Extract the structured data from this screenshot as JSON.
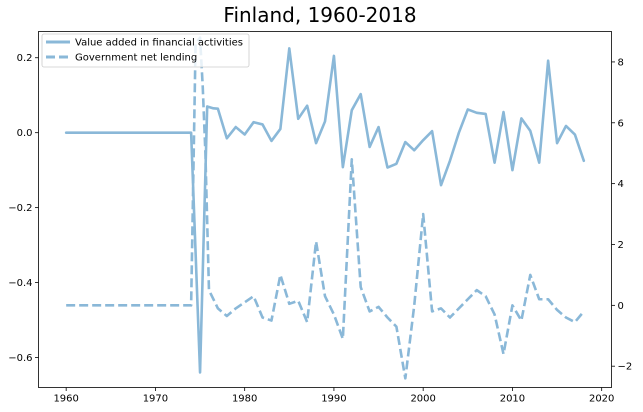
{
  "chart_data": {
    "type": "line",
    "title": "Finland, 1960-2018",
    "xlabel": "",
    "ylabel": "",
    "xlim": [
      1956.9,
      2021.1
    ],
    "ylim_left": [
      -0.68,
      0.27
    ],
    "ylim_right": [
      -2.7,
      9.0
    ],
    "x_ticks": [
      1960,
      1970,
      1980,
      1990,
      2000,
      2010,
      2020
    ],
    "y_ticks_left": [
      0.2,
      0.0,
      -0.2,
      -0.4,
      -0.6
    ],
    "y_ticks_left_labels": [
      "0.2",
      "0.0",
      "−0.2",
      "−0.4",
      "−0.6"
    ],
    "y_ticks_right": [
      8,
      6,
      4,
      2,
      0,
      -2
    ],
    "y_ticks_right_labels": [
      "8",
      "6",
      "4",
      "2",
      "0",
      "−2"
    ],
    "grid": false,
    "legend_position": "top-left",
    "color": "#8ab8d8",
    "series": [
      {
        "name": "Value added in financial activities",
        "axis": "left",
        "style": "solid",
        "points": [
          [
            1960,
            0.0
          ],
          [
            1961,
            0.0
          ],
          [
            1962,
            0.0
          ],
          [
            1963,
            0.0
          ],
          [
            1964,
            0.0
          ],
          [
            1965,
            0.0
          ],
          [
            1966,
            0.0
          ],
          [
            1967,
            0.0
          ],
          [
            1968,
            0.0
          ],
          [
            1969,
            0.0
          ],
          [
            1970,
            0.0
          ],
          [
            1971,
            0.0
          ],
          [
            1972,
            0.0
          ],
          [
            1973,
            0.0
          ],
          [
            1974,
            0.0
          ],
          [
            1975,
            -0.64
          ],
          [
            1975.8,
            0.07
          ],
          [
            1976.5,
            0.065
          ],
          [
            1977,
            0.064
          ],
          [
            1978,
            -0.015
          ],
          [
            1979,
            0.015
          ],
          [
            1980,
            -0.005
          ],
          [
            1981,
            0.028
          ],
          [
            1982,
            0.022
          ],
          [
            1983,
            -0.022
          ],
          [
            1984,
            0.01
          ],
          [
            1985,
            0.225
          ],
          [
            1986,
            0.037
          ],
          [
            1987,
            0.072
          ],
          [
            1988,
            -0.028
          ],
          [
            1989,
            0.03
          ],
          [
            1990,
            0.205
          ],
          [
            1991,
            -0.092
          ],
          [
            1992,
            0.06
          ],
          [
            1993,
            0.103
          ],
          [
            1994,
            -0.038
          ],
          [
            1995,
            0.015
          ],
          [
            1996,
            -0.093
          ],
          [
            1997,
            -0.083
          ],
          [
            1998,
            -0.025
          ],
          [
            1999,
            -0.047
          ],
          [
            2000,
            -0.02
          ],
          [
            2001,
            0.004
          ],
          [
            2002,
            -0.14
          ],
          [
            2003,
            -0.075
          ],
          [
            2004,
            0.0
          ],
          [
            2005,
            0.062
          ],
          [
            2006,
            0.053
          ],
          [
            2007,
            0.05
          ],
          [
            2008,
            -0.08
          ],
          [
            2009,
            0.055
          ],
          [
            2010,
            -0.1
          ],
          [
            2011,
            0.038
          ],
          [
            2012,
            0.005
          ],
          [
            2013,
            -0.08
          ],
          [
            2014,
            0.192
          ],
          [
            2015,
            -0.028
          ],
          [
            2016,
            0.018
          ],
          [
            2017,
            -0.005
          ],
          [
            2018,
            -0.075
          ]
        ]
      },
      {
        "name": "Government net lending",
        "axis": "right",
        "style": "dashed",
        "points": [
          [
            1960,
            0.0
          ],
          [
            1961,
            0.0
          ],
          [
            1962,
            0.0
          ],
          [
            1963,
            0.0
          ],
          [
            1964,
            0.0
          ],
          [
            1965,
            0.0
          ],
          [
            1966,
            0.0
          ],
          [
            1967,
            0.0
          ],
          [
            1968,
            0.0
          ],
          [
            1969,
            0.0
          ],
          [
            1970,
            0.0
          ],
          [
            1971,
            0.0
          ],
          [
            1972,
            0.0
          ],
          [
            1973,
            0.0
          ],
          [
            1974,
            0.0
          ],
          [
            1974.5,
            8.6
          ],
          [
            1975,
            8.8
          ],
          [
            1975.3,
            7.2
          ],
          [
            1975.6,
            5.0
          ],
          [
            1976,
            0.5
          ],
          [
            1977,
            -0.1
          ],
          [
            1978,
            -0.35
          ],
          [
            1979,
            -0.1
          ],
          [
            1980,
            0.1
          ],
          [
            1981,
            0.3
          ],
          [
            1982,
            -0.4
          ],
          [
            1983,
            -0.5
          ],
          [
            1984,
            1.0
          ],
          [
            1985,
            0.05
          ],
          [
            1986,
            0.15
          ],
          [
            1987,
            -0.55
          ],
          [
            1988,
            2.1
          ],
          [
            1989,
            0.3
          ],
          [
            1990,
            -0.3
          ],
          [
            1991,
            -1.1
          ],
          [
            1992,
            4.8
          ],
          [
            1993,
            0.6
          ],
          [
            1994,
            -0.2
          ],
          [
            1995,
            -0.05
          ],
          [
            1996,
            -0.4
          ],
          [
            1997,
            -0.7
          ],
          [
            1998,
            -2.4
          ],
          [
            1999,
            0.0
          ],
          [
            2000,
            3.0
          ],
          [
            2001,
            -0.2
          ],
          [
            2002,
            -0.1
          ],
          [
            2003,
            -0.4
          ],
          [
            2004,
            -0.1
          ],
          [
            2005,
            0.2
          ],
          [
            2006,
            0.5
          ],
          [
            2007,
            0.3
          ],
          [
            2008,
            -0.3
          ],
          [
            2009,
            -1.6
          ],
          [
            2010,
            0.0
          ],
          [
            2011,
            -0.5
          ],
          [
            2012,
            1.0
          ],
          [
            2013,
            0.2
          ],
          [
            2014,
            0.2
          ],
          [
            2015,
            -0.15
          ],
          [
            2016,
            -0.4
          ],
          [
            2017,
            -0.55
          ],
          [
            2018,
            -0.2
          ]
        ]
      }
    ]
  }
}
